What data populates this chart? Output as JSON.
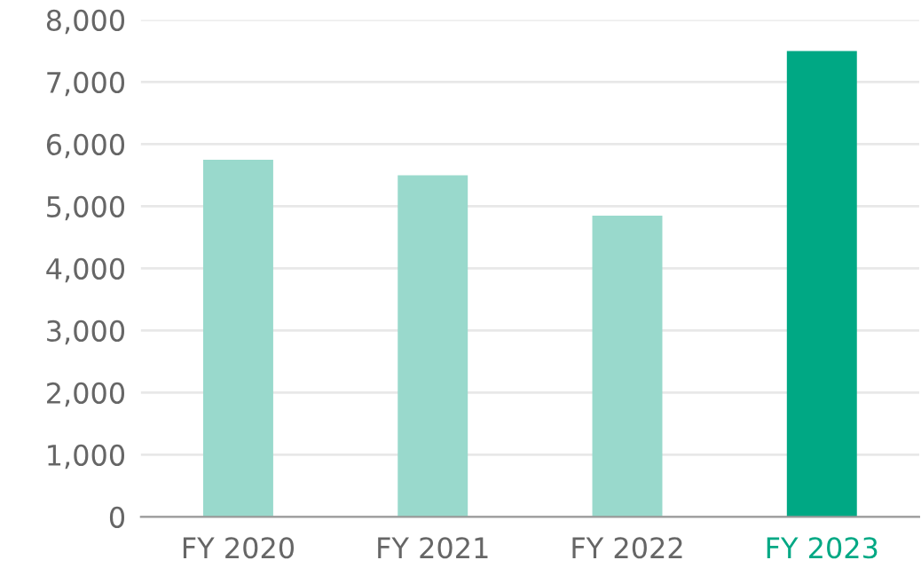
{
  "chart_data": {
    "type": "bar",
    "categories": [
      "FY 2020",
      "FY 2021",
      "FY 2022",
      "FY 2023"
    ],
    "values": [
      5750,
      5500,
      4850,
      7500
    ],
    "colors": [
      "#99d9cc",
      "#99d9cc",
      "#99d9cc",
      "#00a884"
    ],
    "ylim": [
      0,
      8000
    ],
    "yticks": [
      {
        "value": 0,
        "label": "0"
      },
      {
        "value": 1000,
        "label": "1,000"
      },
      {
        "value": 2000,
        "label": "2,000"
      },
      {
        "value": 3000,
        "label": "3,000"
      },
      {
        "value": 4000,
        "label": "4,000"
      },
      {
        "value": 5000,
        "label": "5,000"
      },
      {
        "value": 6000,
        "label": "6,000"
      },
      {
        "value": 7000,
        "label": "7,000"
      },
      {
        "value": 8000,
        "label": "8,000"
      }
    ],
    "grid": "y",
    "legend": false
  }
}
